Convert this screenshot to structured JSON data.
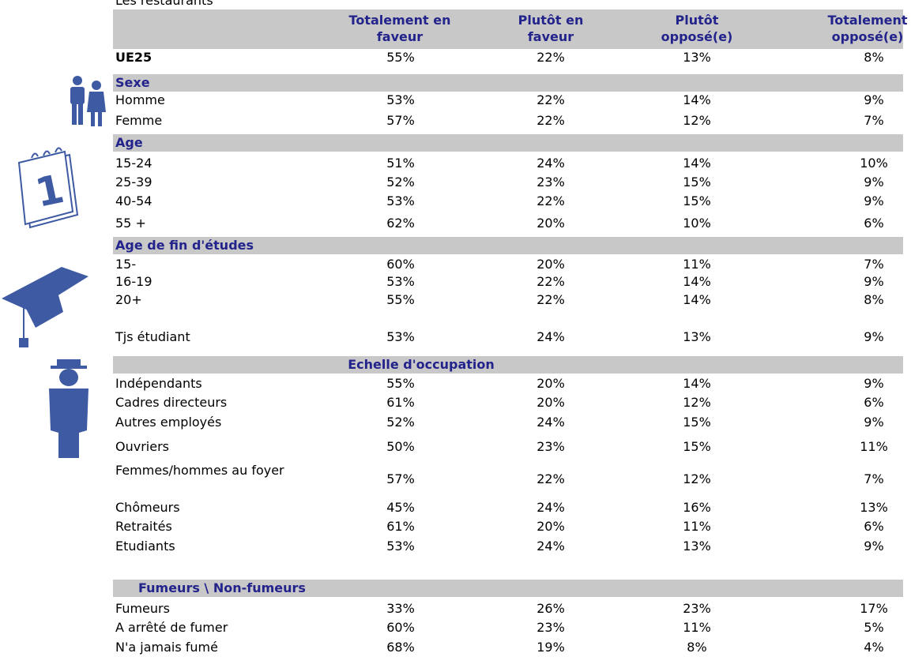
{
  "caption": "Les restaurants",
  "columns": [
    [
      "Totalement en",
      "faveur"
    ],
    [
      "Plutôt en",
      "faveur"
    ],
    [
      "Plutôt",
      "opposé(e)"
    ],
    [
      "Totalement",
      "opposé(e)"
    ]
  ],
  "total": {
    "label": "UE25",
    "values": [
      "55%",
      "22%",
      "13%",
      "8%"
    ]
  },
  "sections": [
    {
      "title": "Sexe",
      "rows": [
        {
          "label": "Homme",
          "values": [
            "53%",
            "22%",
            "14%",
            "9%"
          ]
        },
        {
          "label": "Femme",
          "values": [
            "57%",
            "22%",
            "12%",
            "7%"
          ]
        }
      ]
    },
    {
      "title": "Age",
      "rows": [
        {
          "label": "15-24",
          "values": [
            "51%",
            "24%",
            "14%",
            "10%"
          ]
        },
        {
          "label": "25-39",
          "values": [
            "52%",
            "23%",
            "15%",
            "9%"
          ]
        },
        {
          "label": "40-54",
          "values": [
            "53%",
            "22%",
            "15%",
            "9%"
          ]
        },
        {
          "label": "55 +",
          "values": [
            "62%",
            "20%",
            "10%",
            "6%"
          ]
        }
      ]
    },
    {
      "title": "Age de fin d'études",
      "rows": [
        {
          "label": "15-",
          "values": [
            "60%",
            "20%",
            "11%",
            "7%"
          ]
        },
        {
          "label": "16-19",
          "values": [
            "53%",
            "22%",
            "14%",
            "9%"
          ]
        },
        {
          "label": "20+",
          "values": [
            "55%",
            "22%",
            "14%",
            "8%"
          ]
        },
        {
          "label": "Tjs étudiant",
          "values": [
            "53%",
            "24%",
            "13%",
            "9%"
          ]
        }
      ]
    },
    {
      "title": "Echelle d'occupation",
      "rows": [
        {
          "label": "Indépendants",
          "values": [
            "55%",
            "20%",
            "14%",
            "9%"
          ]
        },
        {
          "label": "Cadres directeurs",
          "values": [
            "61%",
            "20%",
            "12%",
            "6%"
          ]
        },
        {
          "label": "Autres employés",
          "values": [
            "52%",
            "24%",
            "15%",
            "9%"
          ]
        },
        {
          "label": "Ouvriers",
          "values": [
            "50%",
            "23%",
            "15%",
            "11%"
          ]
        },
        {
          "label": "Femmes/hommes au foyer",
          "values": [
            "57%",
            "22%",
            "12%",
            "7%"
          ]
        },
        {
          "label": "Chômeurs",
          "values": [
            "45%",
            "24%",
            "16%",
            "13%"
          ]
        },
        {
          "label": "Retraités",
          "values": [
            "61%",
            "20%",
            "11%",
            "6%"
          ]
        },
        {
          "label": "Etudiants",
          "values": [
            "53%",
            "24%",
            "13%",
            "9%"
          ]
        }
      ]
    },
    {
      "title": "Fumeurs \\ Non-fumeurs",
      "rows": [
        {
          "label": "Fumeurs",
          "values": [
            "33%",
            "26%",
            "23%",
            "17%"
          ]
        },
        {
          "label": "A arrêté de fumer",
          "values": [
            "60%",
            "23%",
            "11%",
            "5%"
          ]
        },
        {
          "label": "N'a jamais fumé",
          "values": [
            "68%",
            "19%",
            "8%",
            "4%"
          ]
        }
      ]
    }
  ]
}
